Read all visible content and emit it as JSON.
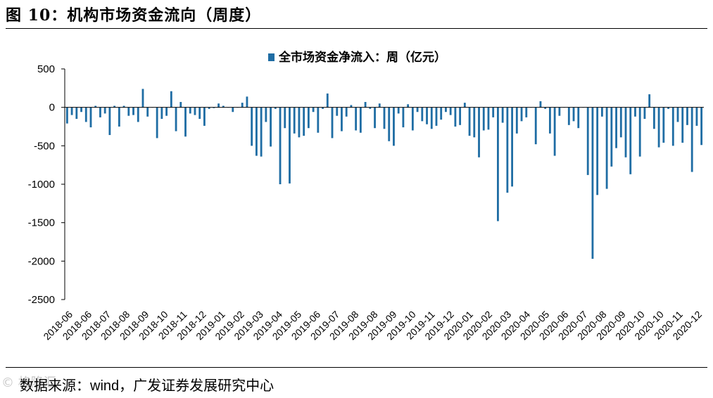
{
  "figure": {
    "label": "图 10：机构市场资金流向（周度）",
    "source_label": "数据来源：",
    "source_text": "wind，广发证券发展研究中心",
    "watermark": "© 格隆汇"
  },
  "colors": {
    "bar": "#1F6DA4",
    "axis": "#000000"
  },
  "chart_data": {
    "type": "bar",
    "title": "",
    "legend": "全市场资金净流入：周（亿元）",
    "legend_position": "top-center",
    "ylabel": "",
    "xlabel": "",
    "ylim": [
      -2500,
      500
    ],
    "yticks": [
      500,
      0,
      -500,
      -1000,
      -1500,
      -2000,
      -2500
    ],
    "grid": false,
    "xtick_labels": [
      "2018-06",
      "2018-06",
      "2018-07",
      "2018-08",
      "2018-09",
      "2018-10",
      "2018-11",
      "2018-12",
      "2019-01",
      "2019-02",
      "2019-03",
      "2019-04",
      "2019-05",
      "2019-06",
      "2019-07",
      "2019-08",
      "2019-08",
      "2019-09",
      "2019-10",
      "2019-11",
      "2019-12",
      "2020-01",
      "2020-02",
      "2020-03",
      "2020-04",
      "2020-05",
      "2020-06",
      "2020-07",
      "2020-08",
      "2020-09",
      "2020-10",
      "2020-10",
      "2020-11",
      "2020-12"
    ],
    "series": [
      {
        "name": "全市场资金净流入：周（亿元）",
        "values": [
          -210,
          -100,
          -150,
          -60,
          -190,
          -260,
          20,
          -130,
          -80,
          -360,
          20,
          -250,
          20,
          -110,
          -100,
          -190,
          240,
          -120,
          0,
          -400,
          -150,
          -110,
          210,
          -310,
          70,
          -380,
          -80,
          -100,
          -150,
          -240,
          -20,
          -10,
          50,
          20,
          0,
          -60,
          0,
          60,
          140,
          -500,
          -630,
          -640,
          -190,
          -510,
          -20,
          -1000,
          -270,
          -990,
          -340,
          -390,
          -370,
          -270,
          -60,
          -330,
          -20,
          180,
          -400,
          -110,
          -310,
          -120,
          30,
          -300,
          -330,
          70,
          -20,
          -270,
          50,
          -280,
          -440,
          -500,
          -80,
          -260,
          40,
          -300,
          -60,
          -180,
          -220,
          -280,
          -240,
          -160,
          -60,
          -100,
          -250,
          -230,
          60,
          -370,
          -390,
          -650,
          -300,
          -290,
          -130,
          -1480,
          -200,
          -1110,
          -1030,
          -340,
          -180,
          -130,
          0,
          -480,
          80,
          -20,
          -340,
          -630,
          -110,
          0,
          -230,
          -180,
          -270,
          0,
          -880,
          -1970,
          -1140,
          -120,
          -1060,
          -770,
          -530,
          -390,
          -650,
          -870,
          -120,
          -640,
          -150,
          170,
          -280,
          -520,
          -460,
          -20,
          -500,
          -190,
          -460,
          -230,
          -840,
          -240,
          -490
        ]
      }
    ]
  }
}
